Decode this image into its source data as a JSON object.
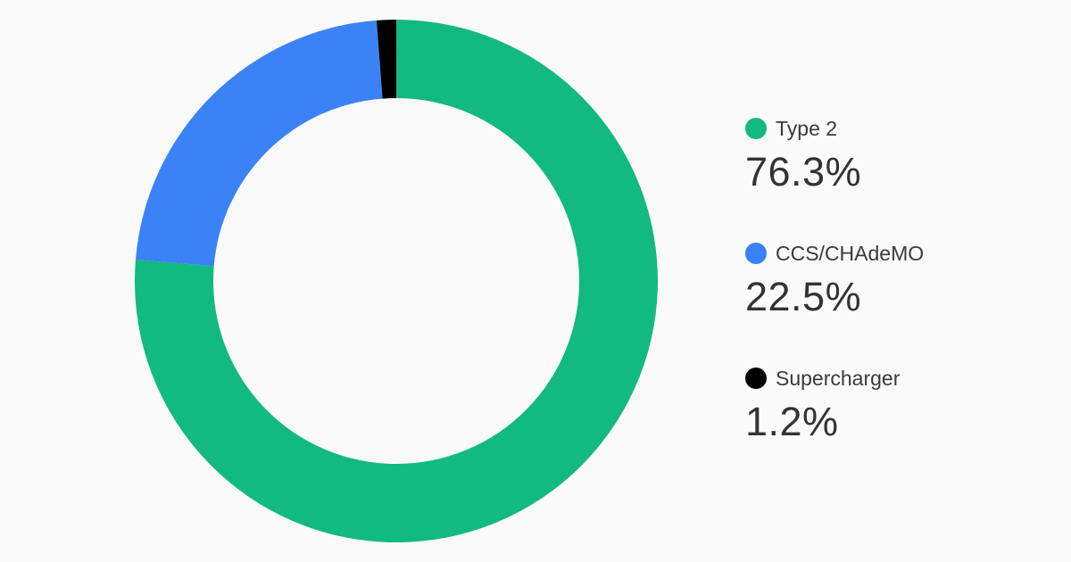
{
  "chart_data": {
    "type": "pie",
    "variant": "donut",
    "categories": [
      "Type 2",
      "CCS/CHAdeMO",
      "Supercharger"
    ],
    "values": [
      76.3,
      22.5,
      1.2
    ],
    "value_labels": [
      "76.3%",
      "22.5%",
      "1.2%"
    ],
    "colors": [
      "#12b981",
      "#3b82f6",
      "#000000"
    ],
    "legend_placement": "right",
    "start": "top",
    "direction": "clockwise"
  }
}
